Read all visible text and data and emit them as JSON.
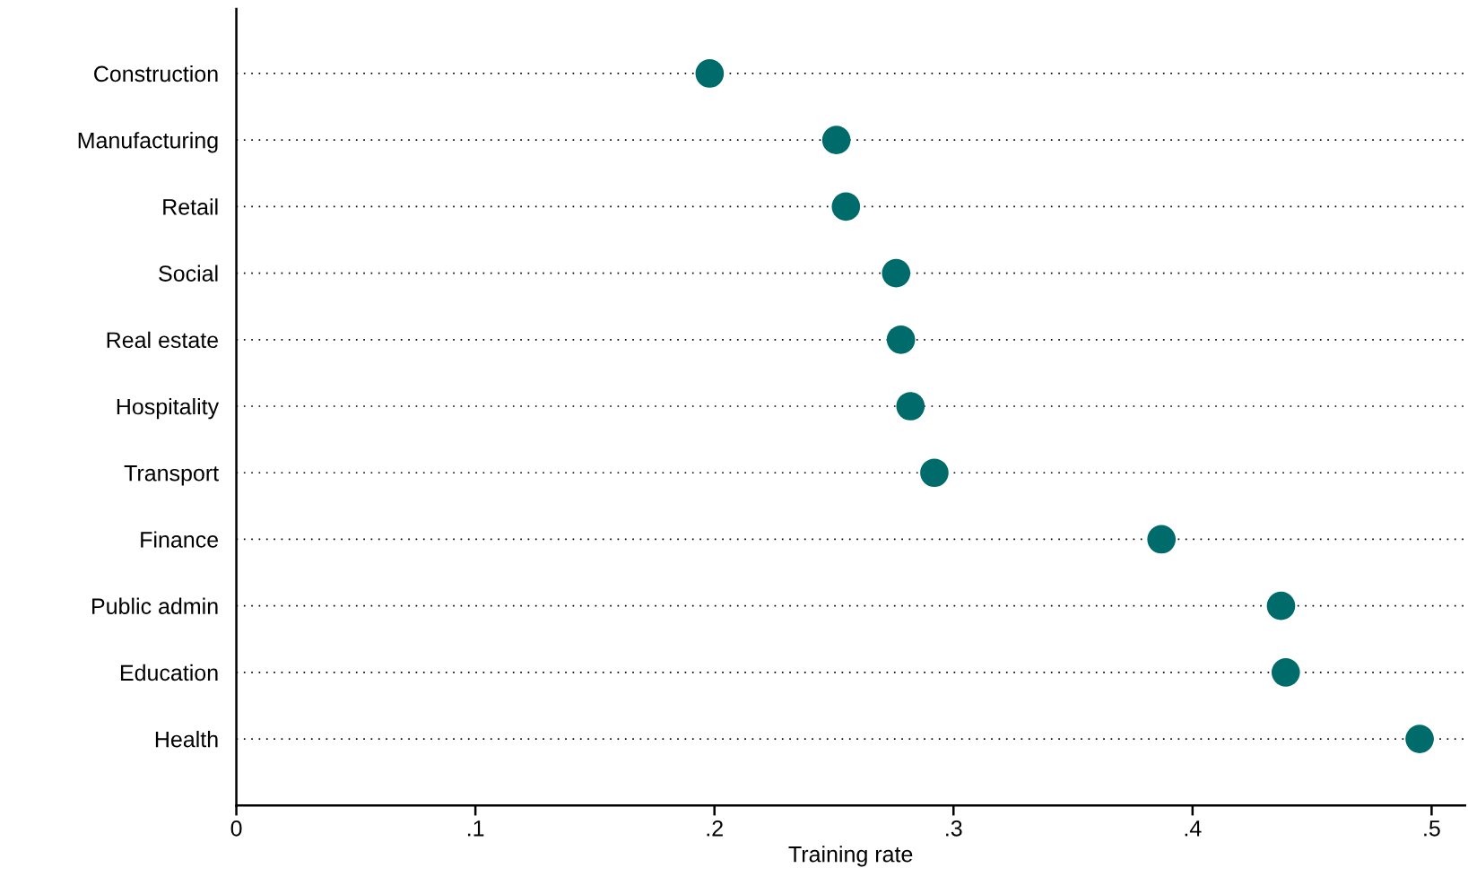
{
  "chart_data": {
    "type": "scatter",
    "orientation": "horizontal",
    "xlabel": "Training rate",
    "categories": [
      "Construction",
      "Manufacturing",
      "Retail",
      "Social",
      "Real estate",
      "Hospitality",
      "Transport",
      "Finance",
      "Public admin",
      "Education",
      "Health"
    ],
    "values": [
      0.198,
      0.251,
      0.255,
      0.276,
      0.278,
      0.282,
      0.292,
      0.387,
      0.437,
      0.439,
      0.495
    ],
    "color": "#006b6b",
    "marker": "circle",
    "grid": "y",
    "xlim": [
      0,
      0.514
    ],
    "xticks": [
      0,
      {
        "value": 0.1,
        "label": ".1"
      },
      {
        "value": 0.2,
        "label": ".2"
      },
      {
        "value": 0.3,
        "label": ".3"
      },
      {
        "value": 0.4,
        "label": ".4"
      },
      {
        "value": 0.5,
        "label": ".5"
      }
    ]
  }
}
